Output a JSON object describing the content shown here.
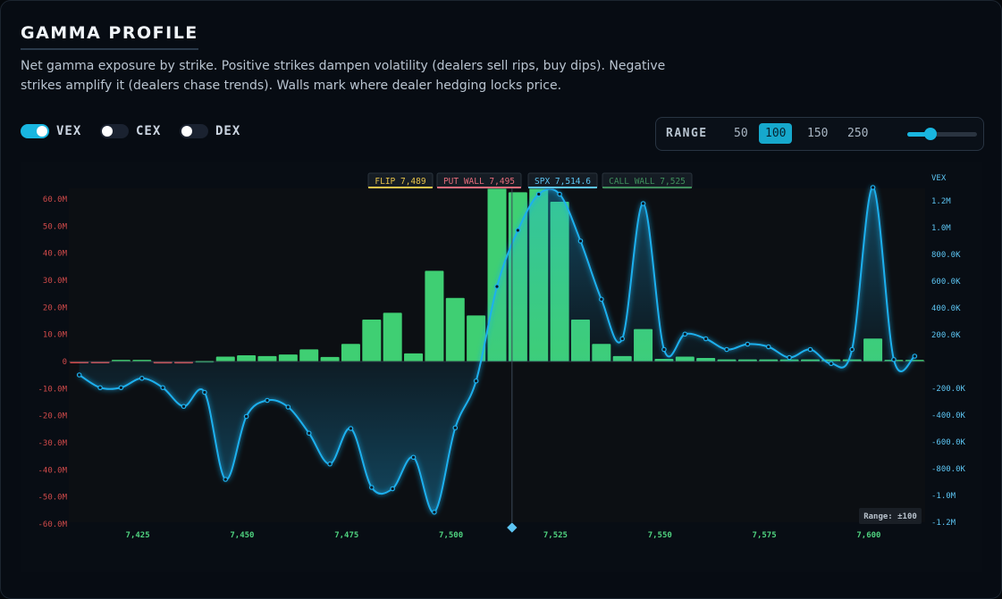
{
  "header": {
    "title": "GAMMA PROFILE",
    "description": "Net gamma exposure by strike. Positive strikes dampen volatility (dealers sell rips, buy dips). Negative strikes amplify it (dealers chase trends). Walls mark where dealer hedging locks price."
  },
  "toggles": [
    {
      "label": "VEX",
      "on": true
    },
    {
      "label": "CEX",
      "on": false
    },
    {
      "label": "DEX",
      "on": false
    }
  ],
  "range": {
    "label": "RANGE",
    "options": [
      "50",
      "100",
      "150",
      "250"
    ],
    "selected": "100",
    "slider_fraction": 0.33
  },
  "colors": {
    "accent": "#19b6e0",
    "positive_bar": "#3fcf73",
    "negative_bar": "#d04a4a",
    "vex_line": "#1fb0ee",
    "flip": "#e6c34a",
    "put_wall": "#e56b7a",
    "spx": "#5cc4f2",
    "call_wall": "#3f8f5c"
  },
  "chart_data": {
    "type": "bar",
    "x": [
      7411,
      7416,
      7421,
      7426,
      7431,
      7436,
      7441,
      7446,
      7451,
      7456,
      7461,
      7466,
      7471,
      7476,
      7481,
      7486,
      7491,
      7496,
      7501,
      7506,
      7511,
      7516,
      7521,
      7526,
      7531,
      7536,
      7541,
      7546,
      7551,
      7556,
      7561,
      7566,
      7571,
      7576,
      7581,
      7586,
      7591,
      7596,
      7601,
      7606,
      7611
    ],
    "x_ticks": [
      7425,
      7450,
      7475,
      7500,
      7525,
      7550,
      7575,
      7600
    ],
    "x_tick_labels": [
      "7,425",
      "7,450",
      "7,475",
      "7,500",
      "7,525",
      "7,550",
      "7,575",
      "7,600"
    ],
    "ylim": [
      -60000000,
      60000000
    ],
    "y_ticks": [
      60000000,
      50000000,
      40000000,
      30000000,
      20000000,
      10000000,
      0,
      -10000000,
      -20000000,
      -30000000,
      -40000000,
      -50000000,
      -60000000
    ],
    "y_tick_labels": [
      "60.0M",
      "50.0M",
      "40.0M",
      "30.0M",
      "20.0M",
      "10.0M",
      "0",
      "-10.0M",
      "-20.0M",
      "-30.0M",
      "-40.0M",
      "-50.0M",
      "-60.0M"
    ],
    "y2label": "VEX",
    "y2lim": [
      -1200000,
      1200000
    ],
    "y2_ticks": [
      1200000,
      1000000,
      800000,
      600000,
      400000,
      200000,
      -200000,
      -400000,
      -600000,
      -800000,
      -1000000,
      -1200000
    ],
    "y2_tick_labels": [
      "1.2M",
      "1.0M",
      "800.0K",
      "600.0K",
      "400.0K",
      "200.0K",
      "-200.0K",
      "-400.0K",
      "-600.0K",
      "-800.0K",
      "-1.0M",
      "-1.2M"
    ],
    "series": [
      {
        "axis": "left",
        "style": "bars",
        "values": [
          -400000,
          -400000,
          600000,
          600000,
          -700000,
          -700000,
          300000,
          1800000,
          2300000,
          2000000,
          2600000,
          4500000,
          1700000,
          6500000,
          15500000,
          18000000,
          3000000,
          33500000,
          23500000,
          17000000,
          65000000,
          62500000,
          64500000,
          59000000,
          15500000,
          6500000,
          2000000,
          12000000,
          1000000,
          1800000,
          1300000,
          800000,
          800000,
          800000,
          800000,
          800000,
          800000,
          800000,
          8500000,
          600000,
          600000
        ]
      },
      {
        "name": "VEX",
        "axis": "right",
        "style": "line",
        "x": [
          7411,
          7416,
          7421,
          7426,
          7431,
          7436,
          7441,
          7446,
          7451,
          7456,
          7461,
          7466,
          7471,
          7476,
          7481,
          7486,
          7491,
          7496,
          7501,
          7506,
          7511,
          7516,
          7521,
          7526,
          7531,
          7536,
          7541,
          7546,
          7551,
          7556,
          7561,
          7566,
          7571,
          7576,
          7581,
          7586,
          7591,
          7596,
          7601,
          7606,
          7611
        ],
        "values": [
          -100000,
          -195000,
          -195000,
          -125000,
          -195000,
          -335000,
          -230000,
          -880000,
          -410000,
          -290000,
          -340000,
          -535000,
          -765000,
          -500000,
          -940000,
          -950000,
          -715000,
          -1125000,
          -495000,
          -145000,
          560000,
          980000,
          1250000,
          1250000,
          900000,
          465000,
          170000,
          1180000,
          90000,
          205000,
          170000,
          90000,
          130000,
          110000,
          30000,
          90000,
          -15000,
          90000,
          1300000,
          15000,
          40000
        ]
      }
    ],
    "markers": {
      "spot": 7514.6,
      "flip": {
        "label": "FLIP",
        "value": "7,489"
      },
      "put_wall": {
        "label": "PUT WALL",
        "value": "7,495"
      },
      "spx": {
        "label": "SPX",
        "value": "7,514.6"
      },
      "call_wall": {
        "label": "CALL WALL",
        "value": "7,525"
      }
    },
    "range_badge": "Range: ±100",
    "grid": false
  }
}
